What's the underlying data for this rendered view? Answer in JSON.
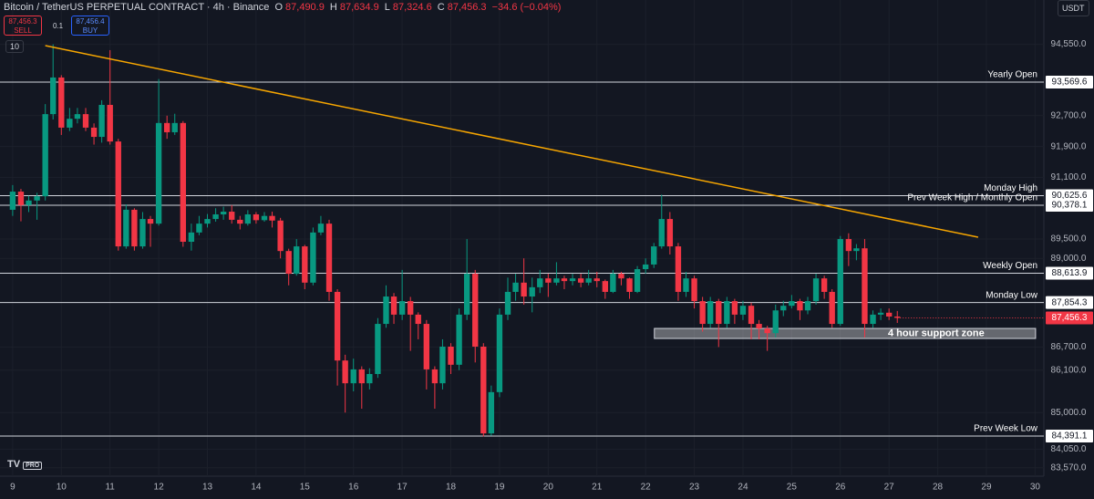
{
  "header": {
    "symbol": "Bitcoin / TetherUS PERPETUAL CONTRACT · 4h · Binance",
    "o_label": "O",
    "o": "87,490.9",
    "h_label": "H",
    "h": "87,634.9",
    "l_label": "L",
    "l": "87,324.6",
    "c_label": "C",
    "c": "87,456.3",
    "change": "−34.6 (−0.04%)",
    "sell_price": "87,456.3",
    "sell": "SELL",
    "spread": "0.1",
    "buy_price": "87,456.4",
    "buy": "BUY",
    "indicators": "10",
    "currency": "USDT",
    "logo": "PRO"
  },
  "chart_data": {
    "type": "candlestick",
    "up_color": "#089981",
    "down_color": "#f23645",
    "grid": true,
    "xlim": [
      8.74,
      30.18
    ],
    "ylim": [
      83350,
      95700
    ],
    "xticks": [
      9,
      10,
      11,
      12,
      13,
      14,
      15,
      16,
      17,
      18,
      19,
      20,
      21,
      22,
      23,
      24,
      25,
      26,
      27,
      28,
      29,
      30
    ],
    "yticks": [
      {
        "value": 94550,
        "label": "94,550.0"
      },
      {
        "value": 92700,
        "label": "92,700.0"
      },
      {
        "value": 91900,
        "label": "91,900.0"
      },
      {
        "value": 91100,
        "label": "91,100.0"
      },
      {
        "value": 89500,
        "label": "89,500.0"
      },
      {
        "value": 89000,
        "label": "89,000.0"
      },
      {
        "value": 86700,
        "label": "86,700.0"
      },
      {
        "value": 86100,
        "label": "86,100.0"
      },
      {
        "value": 85000,
        "label": "85,000.0"
      },
      {
        "value": 84050,
        "label": "84,050.0"
      },
      {
        "value": 83570,
        "label": "83,570.0"
      }
    ],
    "x": [
      9,
      9.17,
      9.33,
      9.5,
      9.67,
      9.83,
      10,
      10.17,
      10.33,
      10.5,
      10.67,
      10.83,
      11,
      11.17,
      11.33,
      11.5,
      11.67,
      11.83,
      12,
      12.17,
      12.33,
      12.5,
      12.67,
      12.83,
      13,
      13.17,
      13.33,
      13.5,
      13.67,
      13.83,
      14,
      14.17,
      14.33,
      14.5,
      14.67,
      14.83,
      15,
      15.17,
      15.33,
      15.5,
      15.67,
      15.83,
      16,
      16.17,
      16.33,
      16.5,
      16.67,
      16.83,
      17,
      17.17,
      17.33,
      17.5,
      17.67,
      17.83,
      18,
      18.17,
      18.33,
      18.5,
      18.67,
      18.83,
      19,
      19.17,
      19.33,
      19.5,
      19.67,
      19.83,
      20,
      20.17,
      20.33,
      20.5,
      20.67,
      20.83,
      21,
      21.17,
      21.33,
      21.5,
      21.67,
      21.83,
      22,
      22.17,
      22.33,
      22.5,
      22.67,
      22.83,
      23,
      23.17,
      23.33,
      23.5,
      23.67,
      23.83,
      24,
      24.17,
      24.33,
      24.5,
      24.67,
      24.83,
      25,
      25.17,
      25.33,
      25.5,
      25.67,
      25.83,
      26,
      26.17,
      26.33,
      26.5,
      26.67,
      26.83,
      27,
      27.17
    ],
    "open": [
      90260,
      90730,
      90380,
      90500,
      90610,
      92740,
      93690,
      92390,
      92620,
      92740,
      92390,
      92150,
      92980,
      92030,
      89310,
      90260,
      89310,
      90020,
      89900,
      92510,
      92270,
      92510,
      89430,
      89670,
      89900,
      90020,
      90140,
      90210,
      90000,
      89900,
      90140,
      89990,
      90100,
      89980,
      89190,
      88600,
      89310,
      88370,
      89670,
      89900,
      88130,
      86350,
      85760,
      86120,
      85760,
      86000,
      87300,
      88010,
      87540,
      87890,
      87540,
      87300,
      86120,
      85760,
      86710,
      86240,
      87540,
      88600,
      86710,
      84460,
      85530,
      87540,
      88130,
      88370,
      88010,
      88250,
      88480,
      88370,
      88480,
      88410,
      88480,
      88370,
      88480,
      88410,
      88130,
      88600,
      88480,
      88130,
      88720,
      88840,
      89310,
      90020,
      89310,
      88130,
      88480,
      87890,
      87300,
      87890,
      87300,
      87890,
      87540,
      87770,
      87300,
      87180,
      87060,
      87650,
      87770,
      87890,
      87650,
      87890,
      88480,
      88130,
      87300,
      89500,
      89190,
      89260,
      87300,
      87540,
      87590,
      87490.9
    ],
    "high": [
      90900,
      90800,
      90620,
      90700,
      93000,
      94550,
      93750,
      92900,
      92900,
      92900,
      92500,
      93100,
      94400,
      92100,
      90400,
      90300,
      90200,
      90100,
      93650,
      92700,
      92750,
      92560,
      89900,
      90100,
      90150,
      90300,
      90340,
      90380,
      90100,
      90250,
      90200,
      90200,
      90210,
      90050,
      89250,
      89500,
      89350,
      89800,
      90100,
      90000,
      88200,
      86500,
      86400,
      86200,
      86150,
      87450,
      88300,
      88100,
      88700,
      88000,
      87600,
      87400,
      86200,
      86900,
      86800,
      87700,
      89500,
      88700,
      86800,
      85700,
      87700,
      88500,
      88600,
      89000,
      88500,
      88700,
      88600,
      88900,
      88550,
      88600,
      88600,
      88700,
      88650,
      88450,
      88700,
      88650,
      88500,
      88800,
      89000,
      89400,
      90650,
      90200,
      89400,
      88650,
      88550,
      88000,
      88000,
      87950,
      88000,
      87950,
      87900,
      87850,
      87400,
      87250,
      87800,
      87900,
      88050,
      87950,
      88000,
      88600,
      88550,
      88200,
      89580,
      89650,
      89370,
      89500,
      87650,
      87700,
      87700,
      87634.9
    ],
    "low": [
      90100,
      89960,
      90200,
      90000,
      90500,
      92600,
      92200,
      92300,
      92500,
      92300,
      91950,
      92000,
      91950,
      89200,
      89250,
      89200,
      89250,
      89300,
      89850,
      92100,
      92200,
      89300,
      89200,
      89600,
      89800,
      89950,
      90000,
      89900,
      89750,
      89850,
      89900,
      89950,
      89800,
      89000,
      88300,
      88550,
      88200,
      88300,
      89600,
      87900,
      85700,
      85000,
      85550,
      85100,
      85600,
      85900,
      87200,
      87300,
      87400,
      86600,
      86900,
      85600,
      85100,
      85600,
      86000,
      86100,
      87400,
      86300,
      84380,
      84400,
      85400,
      87400,
      87900,
      87800,
      87600,
      88100,
      88000,
      88300,
      88200,
      88300,
      88250,
      88300,
      88250,
      87950,
      88100,
      88300,
      87950,
      88100,
      88600,
      88750,
      89250,
      89100,
      87900,
      88000,
      87700,
      87100,
      87200,
      86700,
      87200,
      87300,
      87400,
      86900,
      86900,
      86600,
      86950,
      87500,
      87700,
      87400,
      87550,
      87800,
      87950,
      87200,
      87250,
      88800,
      88950,
      86950,
      87200,
      87400,
      87400,
      87324.6
    ],
    "close": [
      90730,
      90380,
      90500,
      90610,
      92740,
      93690,
      92390,
      92620,
      92740,
      92390,
      92150,
      92980,
      92030,
      89310,
      90260,
      89310,
      90020,
      89900,
      92510,
      92270,
      92510,
      89430,
      89670,
      89900,
      90020,
      90140,
      90210,
      90000,
      89900,
      90140,
      89990,
      90100,
      89980,
      89190,
      88600,
      89310,
      88370,
      89670,
      89900,
      88130,
      86350,
      85760,
      86120,
      85760,
      86000,
      87300,
      88010,
      87540,
      87890,
      87540,
      87300,
      86120,
      85760,
      86710,
      86240,
      87540,
      88600,
      86710,
      84460,
      85530,
      87540,
      88130,
      88370,
      88010,
      88250,
      88480,
      88370,
      88480,
      88410,
      88480,
      88370,
      88480,
      88410,
      88130,
      88600,
      88480,
      88130,
      88720,
      88840,
      89310,
      90020,
      89310,
      88130,
      88480,
      87890,
      87300,
      87890,
      87300,
      87890,
      87540,
      87770,
      87300,
      87180,
      87060,
      87650,
      87770,
      87890,
      87650,
      87890,
      88480,
      88130,
      87300,
      89500,
      89190,
      89260,
      87300,
      87540,
      87590,
      87490.9,
      87456.3
    ],
    "last_label": "87,456.3",
    "levels": [
      {
        "name": "Yearly Open",
        "value": 93569.6,
        "value_label": "93,569.6"
      },
      {
        "name": "Monday High",
        "value": 90625.6,
        "value_label": "90,625.6"
      },
      {
        "name": "Prev Week High / Monthly Open",
        "value": 90378.1,
        "value_label": "90,378.1"
      },
      {
        "name": "Weekly Open",
        "value": 88613.9,
        "value_label": "88,613.9"
      },
      {
        "name": "Monday Low",
        "value": 87854.3,
        "value_label": "87,854.3"
      },
      {
        "name": "Prev Week Low",
        "value": 84391.1,
        "value_label": "84,391.1"
      }
    ],
    "trendline": {
      "color": "#f7a600",
      "x": [
        9.67,
        28.83
      ],
      "y": [
        94517,
        89548
      ]
    },
    "zone": {
      "label": "4 hour support zone",
      "x": [
        22.18,
        30.01
      ],
      "y": [
        87182,
        86922
      ]
    }
  }
}
